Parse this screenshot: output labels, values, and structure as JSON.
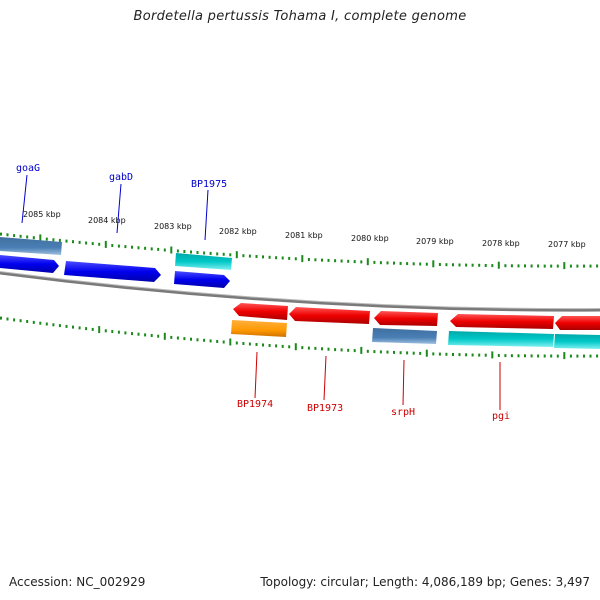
{
  "title": "Bordetella pertussis Tohama I, complete genome",
  "footer": {
    "accession": "Accession: NC_002929",
    "summary": "Topology: circular; Length: 4,086,189 bp; Genes: 3,497"
  },
  "colors": {
    "backbone": "#808080",
    "tick": "#1a8a1a",
    "forward_gene": "#0000ee",
    "reverse_gene": "#ee0000",
    "steelblue_gene": "#4a7fb5",
    "cyan_gene": "#00c8c8",
    "orange_gene": "#ff9900",
    "label_forward": "#0000cc",
    "label_reverse": "#cc0000"
  },
  "ruler": {
    "labels": [
      "2085 kbp",
      "2084 kbp",
      "2083 kbp",
      "2082 kbp",
      "2081 kbp",
      "2080 kbp",
      "2079 kbp",
      "2078 kbp",
      "2077 kbp"
    ]
  },
  "gene_labels": {
    "forward": [
      "goaG",
      "gabD",
      "BP1975"
    ],
    "reverse": [
      "BP1974",
      "BP1973",
      "srpH",
      "pgi"
    ]
  }
}
